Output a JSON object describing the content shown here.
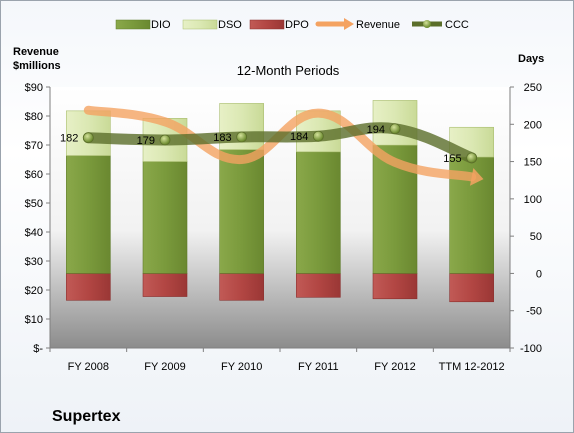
{
  "chart_data": {
    "type": "bar",
    "title": "12-Month Periods",
    "company": "Supertex",
    "y_left_title": [
      "Revenue",
      "$millions"
    ],
    "y_right_title": "Days",
    "y_left_range": [
      0,
      90
    ],
    "y_left_ticks": [
      "$-",
      "$10",
      "$20",
      "$30",
      "$40",
      "$50",
      "$60",
      "$70",
      "$80",
      "$90"
    ],
    "y_right_range": [
      -100,
      250
    ],
    "y_right_ticks": [
      "-100",
      "-50",
      "0",
      "50",
      "100",
      "150",
      "200",
      "250"
    ],
    "categories": [
      "FY 2008",
      "FY 2009",
      "FY 2010",
      "FY 2011",
      "FY 2012",
      "TTM 12-2012"
    ],
    "legend": [
      "DIO",
      "DSO",
      "DPO",
      "Revenue",
      "CCC"
    ],
    "legend_position": "top",
    "series": [
      {
        "name": "DIO",
        "axis": "right",
        "stacked": true,
        "color": "#77963a",
        "values": [
          158,
          150,
          166,
          163,
          172,
          156
        ]
      },
      {
        "name": "DSO",
        "axis": "right",
        "stacked": true,
        "color": "#d9e7b0",
        "values": [
          60,
          58,
          62,
          55,
          60,
          40
        ]
      },
      {
        "name": "DPO",
        "axis": "right",
        "stacked": true,
        "negative": true,
        "color": "#b54a48",
        "values": [
          -36,
          -31,
          -36,
          -32,
          -34,
          -38
        ]
      },
      {
        "name": "Revenue",
        "axis": "left",
        "type": "line",
        "color": "#f4a261",
        "values": [
          82,
          78,
          65,
          81,
          64,
          59
        ]
      },
      {
        "name": "CCC",
        "axis": "right",
        "type": "line",
        "color": "#5b6e2a",
        "values": [
          182,
          179,
          183,
          184,
          194,
          155
        ],
        "labels": [
          "182",
          "179",
          "183",
          "184",
          "194",
          "155"
        ]
      }
    ],
    "grid": false
  }
}
